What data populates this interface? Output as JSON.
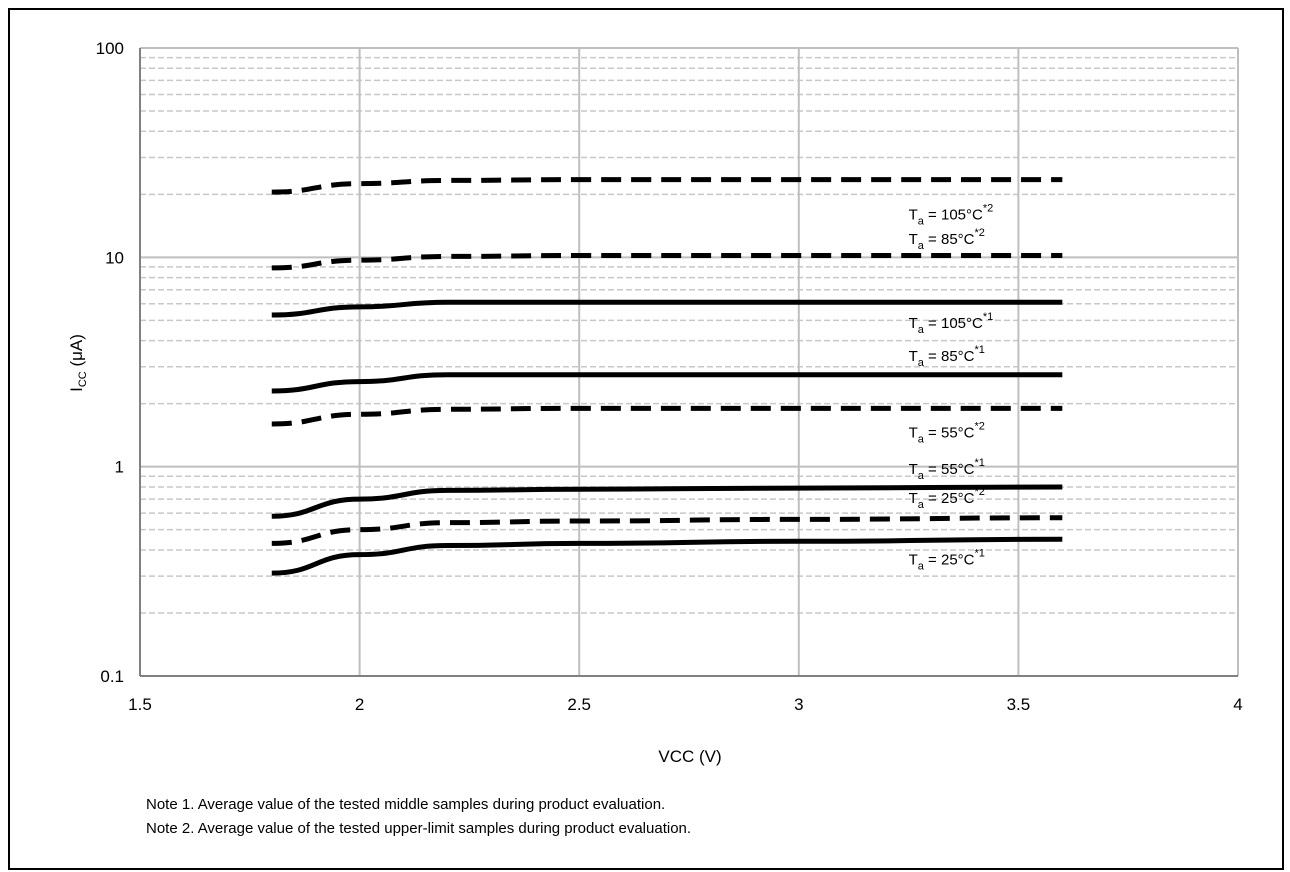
{
  "chart_data": {
    "type": "line",
    "xlabel": "VCC (V)",
    "ylabel_main": "I",
    "ylabel_sub": "CC",
    "ylabel_unit": " (μA)",
    "xlim": [
      1.5,
      4
    ],
    "ylim": [
      0.1,
      100
    ],
    "y_scale": "log",
    "grid": true,
    "x_ticks": [
      {
        "v": 1.5,
        "label": "1.5"
      },
      {
        "v": 2,
        "label": "2"
      },
      {
        "v": 2.5,
        "label": "2.5"
      },
      {
        "v": 3,
        "label": "3"
      },
      {
        "v": 3.5,
        "label": "3.5"
      },
      {
        "v": 4,
        "label": "4"
      }
    ],
    "y_ticks": [
      {
        "v": 0.1,
        "label": "0.1"
      },
      {
        "v": 1,
        "label": "1"
      },
      {
        "v": 10,
        "label": "10"
      },
      {
        "v": 100,
        "label": "100"
      }
    ],
    "series": [
      {
        "style": "dashed",
        "x": [
          1.8,
          2.0,
          2.2,
          2.5,
          3.0,
          3.6
        ],
        "y": [
          20.5,
          22.5,
          23.3,
          23.5,
          23.5,
          23.5
        ]
      },
      {
        "style": "dashed",
        "x": [
          1.8,
          2.0,
          2.2,
          2.5,
          3.0,
          3.6
        ],
        "y": [
          8.9,
          9.7,
          10.1,
          10.2,
          10.2,
          10.2
        ]
      },
      {
        "style": "solid",
        "x": [
          1.8,
          2.0,
          2.2,
          2.5,
          3.0,
          3.6
        ],
        "y": [
          5.3,
          5.8,
          6.1,
          6.1,
          6.1,
          6.1
        ]
      },
      {
        "style": "solid",
        "x": [
          1.8,
          2.0,
          2.2,
          2.5,
          3.0,
          3.6
        ],
        "y": [
          2.3,
          2.55,
          2.75,
          2.75,
          2.75,
          2.75
        ]
      },
      {
        "style": "dashed",
        "x": [
          1.8,
          2.0,
          2.2,
          2.5,
          3.0,
          3.6
        ],
        "y": [
          1.6,
          1.78,
          1.88,
          1.9,
          1.9,
          1.9
        ]
      },
      {
        "style": "solid",
        "x": [
          1.8,
          2.0,
          2.2,
          2.5,
          3.0,
          3.6
        ],
        "y": [
          0.58,
          0.7,
          0.77,
          0.78,
          0.79,
          0.8
        ]
      },
      {
        "style": "dashed",
        "x": [
          1.8,
          2.0,
          2.2,
          2.5,
          3.0,
          3.6
        ],
        "y": [
          0.43,
          0.5,
          0.54,
          0.55,
          0.56,
          0.57
        ]
      },
      {
        "style": "solid",
        "x": [
          1.8,
          2.0,
          2.2,
          2.5,
          3.0,
          3.6
        ],
        "y": [
          0.31,
          0.38,
          0.42,
          0.43,
          0.44,
          0.45
        ]
      }
    ],
    "annotations": [
      {
        "name": "label-105c-upper",
        "x": 3.25,
        "y": 15.2,
        "main": "T",
        "sub": "a",
        "text": " = 105°C",
        "sup": "*2"
      },
      {
        "name": "label-85c-upper",
        "x": 3.25,
        "y": 11.6,
        "main": "T",
        "sub": "a",
        "text": " = 85°C",
        "sup": "*2"
      },
      {
        "name": "label-105c-middle",
        "x": 3.25,
        "y": 4.6,
        "main": "T",
        "sub": "a",
        "text": " = 105°C",
        "sup": "*1"
      },
      {
        "name": "label-85c-middle",
        "x": 3.25,
        "y": 3.2,
        "main": "T",
        "sub": "a",
        "text": " = 85°C",
        "sup": "*1"
      },
      {
        "name": "label-55c-upper",
        "x": 3.25,
        "y": 1.38,
        "main": "T",
        "sub": "a",
        "text": " = 55°C",
        "sup": "*2"
      },
      {
        "name": "label-55c-middle",
        "x": 3.25,
        "y": 0.92,
        "main": "T",
        "sub": "a",
        "text": " = 55°C",
        "sup": "*1"
      },
      {
        "name": "label-25c-upper",
        "x": 3.25,
        "y": 0.67,
        "main": "T",
        "sub": "a",
        "text": " = 25°C",
        "sup": "*2"
      },
      {
        "name": "label-25c-middle",
        "x": 3.25,
        "y": 0.34,
        "main": "T",
        "sub": "a",
        "text": " = 25°C",
        "sup": "*1"
      }
    ]
  },
  "notes": {
    "note1": "Note 1. Average value of the tested middle samples during product evaluation.",
    "note2": "Note 2. Average value of the tested upper-limit samples during product evaluation."
  }
}
